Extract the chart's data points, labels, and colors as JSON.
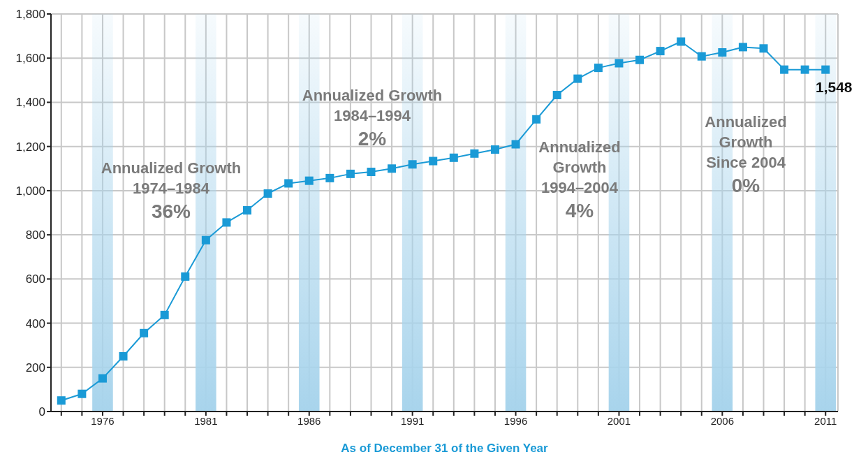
{
  "chart_data": {
    "type": "line",
    "xlabel": "As of December 31 of the Given Year",
    "x": [
      1974,
      1975,
      1976,
      1977,
      1978,
      1979,
      1980,
      1981,
      1982,
      1983,
      1984,
      1985,
      1986,
      1987,
      1988,
      1989,
      1990,
      1991,
      1992,
      1993,
      1994,
      1995,
      1996,
      1997,
      1998,
      1999,
      2000,
      2001,
      2002,
      2003,
      2004,
      2005,
      2006,
      2007,
      2008,
      2009,
      2010,
      2011
    ],
    "series": [
      {
        "color": "#1a9ad6",
        "values": [
          50,
          80,
          150,
          250,
          355,
          437,
          611,
          776,
          856,
          911,
          987,
          1033,
          1045,
          1057,
          1076,
          1085,
          1100,
          1119,
          1134,
          1149,
          1168,
          1186,
          1210,
          1323,
          1433,
          1507,
          1556,
          1577,
          1592,
          1632,
          1675,
          1608,
          1626,
          1650,
          1644,
          1548,
          1548,
          1548
        ],
        "value_labels": [
          null,
          null,
          null,
          null,
          null,
          null,
          null,
          null,
          null,
          null,
          null,
          null,
          null,
          null,
          null,
          null,
          null,
          null,
          null,
          null,
          null,
          null,
          null,
          null,
          null,
          null,
          null,
          null,
          null,
          null,
          null,
          null,
          null,
          null,
          null,
          null,
          null,
          "1,548"
        ]
      }
    ],
    "xlim": [
      1973.5,
      2011.6
    ],
    "xticks": [
      {
        "value": 1974,
        "label": null
      },
      {
        "value": 1975,
        "label": null
      },
      1976,
      {
        "value": 1977,
        "label": null
      },
      {
        "value": 1978,
        "label": null
      },
      {
        "value": 1979,
        "label": null
      },
      {
        "value": 1980,
        "label": null
      },
      1981,
      {
        "value": 1982,
        "label": null
      },
      {
        "value": 1983,
        "label": null
      },
      {
        "value": 1984,
        "label": null
      },
      {
        "value": 1985,
        "label": null
      },
      1986,
      {
        "value": 1987,
        "label": null
      },
      {
        "value": 1988,
        "label": null
      },
      {
        "value": 1989,
        "label": null
      },
      {
        "value": 1990,
        "label": null
      },
      1991,
      {
        "value": 1992,
        "label": null
      },
      {
        "value": 1993,
        "label": null
      },
      {
        "value": 1994,
        "label": null
      },
      {
        "value": 1995,
        "label": null
      },
      1996,
      {
        "value": 1997,
        "label": null
      },
      {
        "value": 1998,
        "label": null
      },
      {
        "value": 1999,
        "label": null
      },
      {
        "value": 2000,
        "label": null
      },
      2001,
      {
        "value": 2002,
        "label": null
      },
      {
        "value": 2003,
        "label": null
      },
      {
        "value": 2004,
        "label": null
      },
      {
        "value": 2005,
        "label": null
      },
      2006,
      {
        "value": 2007,
        "label": null
      },
      {
        "value": 2008,
        "label": null
      },
      {
        "value": 2009,
        "label": null
      },
      {
        "value": 2010,
        "label": null
      },
      2011
    ],
    "ylim": [
      0,
      1800
    ],
    "yticks": [
      0,
      200,
      400,
      600,
      800,
      {
        "value": 1000,
        "label": "1,000"
      },
      {
        "value": 1200,
        "label": "1,200"
      },
      {
        "value": 1400,
        "label": "1,400"
      },
      {
        "value": 1600,
        "label": "1,600"
      },
      {
        "value": 1800,
        "label": "1,800"
      }
    ],
    "grid": true,
    "marker": "square",
    "line_style": "solid",
    "bands": [
      {
        "axis": "x",
        "from": 1975.5,
        "to": 1976.5,
        "color": "#a8d4ec"
      },
      {
        "axis": "x",
        "from": 1980.5,
        "to": 1981.5,
        "color": "#a8d4ec"
      },
      {
        "axis": "x",
        "from": 1985.5,
        "to": 1986.5,
        "color": "#a8d4ec"
      },
      {
        "axis": "x",
        "from": 1990.5,
        "to": 1991.5,
        "color": "#a8d4ec"
      },
      {
        "axis": "x",
        "from": 1995.5,
        "to": 1996.5,
        "color": "#a8d4ec"
      },
      {
        "axis": "x",
        "from": 2000.5,
        "to": 2001.5,
        "color": "#a8d4ec"
      },
      {
        "axis": "x",
        "from": 2005.5,
        "to": 2006.5,
        "color": "#a8d4ec"
      },
      {
        "axis": "x",
        "from": 2010.5,
        "to": 2011.5,
        "color": "#a8d4ec"
      }
    ],
    "annotations": [
      "Annualized Growth\n1974–1984\n36%",
      "Annualized Growth\n1984–1994\n2%",
      "Annualized\nGrowth\n1994–2004\n4%",
      "Annualized\nGrowth\nSince 2004\n0%"
    ]
  }
}
